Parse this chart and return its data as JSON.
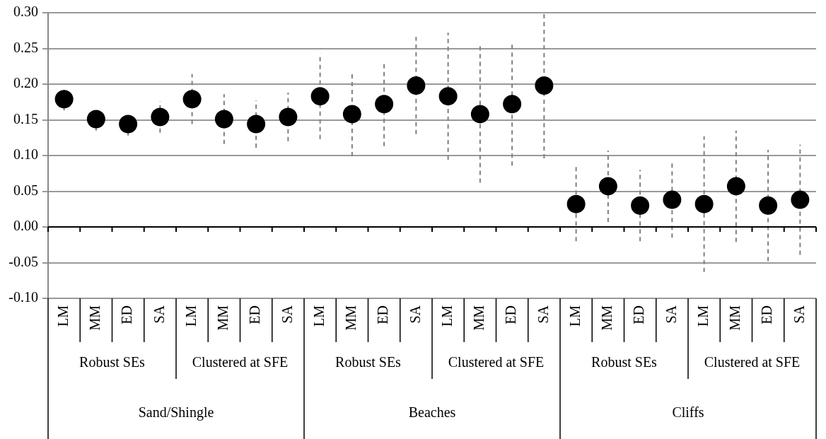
{
  "chart_data": {
    "type": "scatter",
    "categories": [
      "LM",
      "MM",
      "ED",
      "SA",
      "LM",
      "MM",
      "ED",
      "SA",
      "LM",
      "MM",
      "ED",
      "SA",
      "LM",
      "MM",
      "ED",
      "SA",
      "LM",
      "MM",
      "ED",
      "SA",
      "LM",
      "MM",
      "ED",
      "SA"
    ],
    "series": [
      {
        "color": "#000000",
        "values": [
          0.179,
          0.151,
          0.144,
          0.154,
          0.179,
          0.151,
          0.144,
          0.154,
          0.183,
          0.158,
          0.172,
          0.198,
          0.183,
          0.158,
          0.172,
          0.198,
          0.032,
          0.057,
          0.03,
          0.038,
          0.032,
          0.057,
          0.03,
          0.038
        ],
        "errors": [
          0.016,
          0.016,
          0.016,
          0.022,
          0.035,
          0.035,
          0.033,
          0.034,
          0.06,
          0.059,
          0.059,
          0.068,
          0.089,
          0.096,
          0.086,
          0.102,
          0.052,
          0.05,
          0.05,
          0.053,
          0.095,
          0.078,
          0.078,
          0.077
        ]
      }
    ],
    "ylim": [
      -0.1,
      0.3
    ],
    "yticks": [
      {
        "value": -0.1,
        "label": "-0.10"
      },
      {
        "value": -0.05,
        "label": "-0.05"
      },
      {
        "value": 0,
        "label": "0.00"
      },
      {
        "value": 0.05,
        "label": "0.05"
      },
      {
        "value": 0.1,
        "label": "0.10"
      },
      {
        "value": 0.15,
        "label": "0.15"
      },
      {
        "value": 0.2,
        "label": "0.20"
      },
      {
        "value": 0.25,
        "label": "0.25"
      },
      {
        "value": 0.3,
        "label": "0.30"
      }
    ],
    "annotations": [
      "Robust SEs",
      "Clustered at SFE",
      "Robust SEs",
      "Clustered at SFE",
      "Robust SEs",
      "Clustered at SFE",
      "Sand/Shingle",
      "Beaches",
      "Cliffs"
    ],
    "grid": "y",
    "legend": false,
    "marker": "circle"
  }
}
